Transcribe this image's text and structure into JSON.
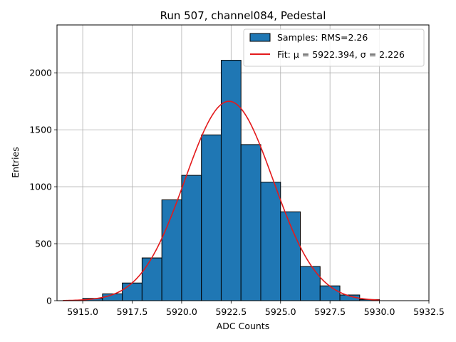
{
  "chart_data": {
    "type": "bar",
    "title": "Run 507, channel084, Pedestal",
    "xlabel": "ADC Counts",
    "ylabel": "Entries",
    "xlim": [
      5913.7,
      5932.5
    ],
    "ylim": [
      0,
      2420
    ],
    "grid": true,
    "x_ticks": [
      5915.0,
      5917.5,
      5920.0,
      5922.5,
      5925.0,
      5927.5,
      5930.0,
      5932.5
    ],
    "x_tick_labels": [
      "5915.0",
      "5917.5",
      "5920.0",
      "5922.5",
      "5925.0",
      "5927.5",
      "5930.0",
      "5932.5"
    ],
    "y_ticks": [
      0,
      500,
      1000,
      1500,
      2000
    ],
    "y_tick_labels": [
      "0",
      "500",
      "1000",
      "1500",
      "2000"
    ],
    "bin_width": 1,
    "bin_edges": [
      5915,
      5916,
      5917,
      5918,
      5919,
      5920,
      5921,
      5922,
      5923,
      5924,
      5925,
      5926,
      5927,
      5928,
      5929,
      5930
    ],
    "values": [
      20,
      60,
      155,
      375,
      885,
      1100,
      1455,
      2110,
      1370,
      1040,
      780,
      300,
      130,
      50,
      10
    ],
    "bar_color": "#1f77b4",
    "bar_edge_color": "#000000",
    "fit": {
      "type": "gaussian",
      "mu": 5922.394,
      "sigma": 2.226,
      "amplitude": 1750,
      "x_range": [
        5914,
        5930
      ],
      "color": "#e31a1c"
    },
    "legend": {
      "position": "top-right",
      "entries": [
        {
          "label": "Samples: RMS=2.26",
          "kind": "patch",
          "color": "#1f77b4"
        },
        {
          "label": "Fit: μ = 5922.394, σ = 2.226",
          "kind": "line",
          "color": "#e31a1c"
        }
      ]
    }
  }
}
